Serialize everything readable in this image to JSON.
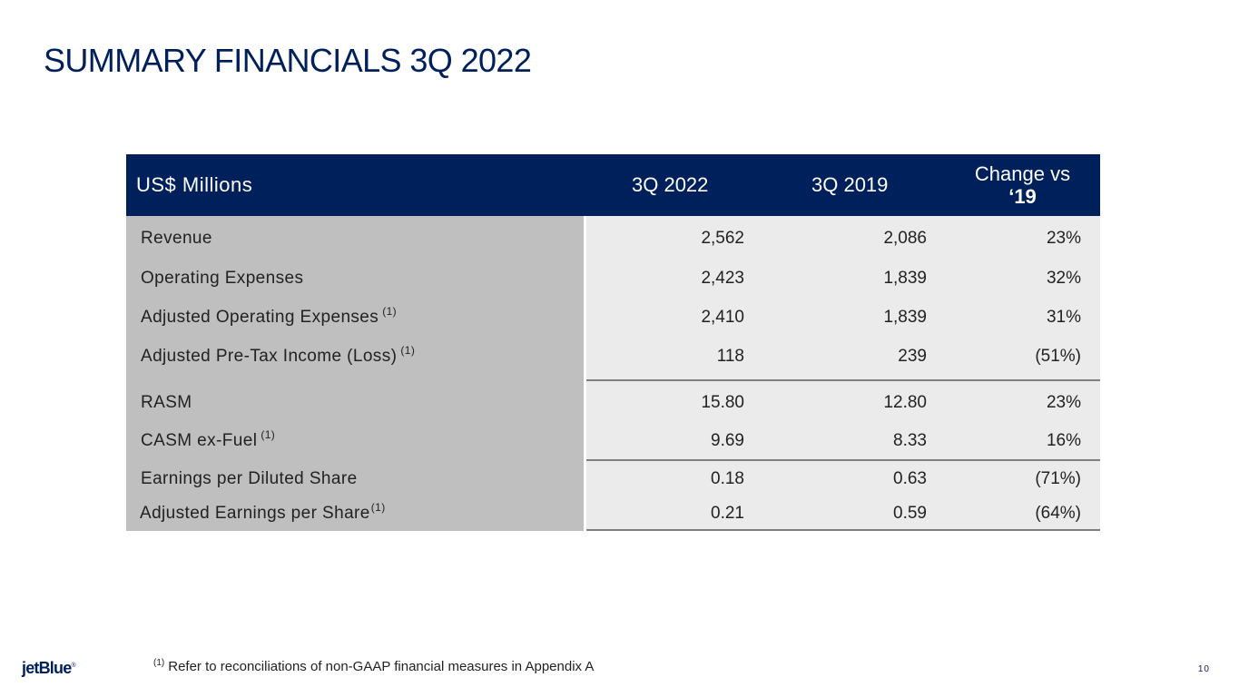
{
  "title": "SUMMARY FINANCIALS 3Q 2022",
  "table": {
    "header": {
      "label": "US$ Millions",
      "col1": "3Q 2022",
      "col2": "3Q 2019",
      "col3_line1": "Change vs",
      "col3_line2": "‘19"
    },
    "rows": [
      {
        "label": "Revenue",
        "note": "",
        "v1": "2,562",
        "v2": "2,086",
        "v3": "23%"
      },
      {
        "label": "Operating Expenses",
        "note": "",
        "v1": "2,423",
        "v2": "1,839",
        "v3": "32%"
      },
      {
        "label": "Adjusted Operating Expenses",
        "note": "(1)",
        "v1": "2,410",
        "v2": "1,839",
        "v3": "31%"
      },
      {
        "label": "Adjusted Pre-Tax Income (Loss)",
        "note": "(1)",
        "v1": "118",
        "v2": "239",
        "v3": "(51%)"
      },
      {
        "label": "RASM",
        "note": "",
        "v1": "15.80",
        "v2": "12.80",
        "v3": "23%"
      },
      {
        "label": "CASM ex-Fuel",
        "note": "(1)",
        "v1": "9.69",
        "v2": "8.33",
        "v3": "16%"
      },
      {
        "label": "Earnings per Diluted Share",
        "note": "",
        "v1": "0.18",
        "v2": "0.63",
        "v3": "(71%)"
      },
      {
        "label": "Adjusted Earnings per Share",
        "note": "(1)",
        "v1": "0.21",
        "v2": "0.59",
        "v3": "(64%)"
      }
    ]
  },
  "footnote": {
    "marker": "(1)",
    "text": "Refer to reconciliations of non-GAAP financial measures in Appendix A"
  },
  "logo": {
    "text": "jetBlue",
    "mark": "®"
  },
  "page_number": "10",
  "colors": {
    "brand_navy": "#00205b",
    "label_gray": "#bfbfbf",
    "value_gray": "#ebebeb"
  }
}
